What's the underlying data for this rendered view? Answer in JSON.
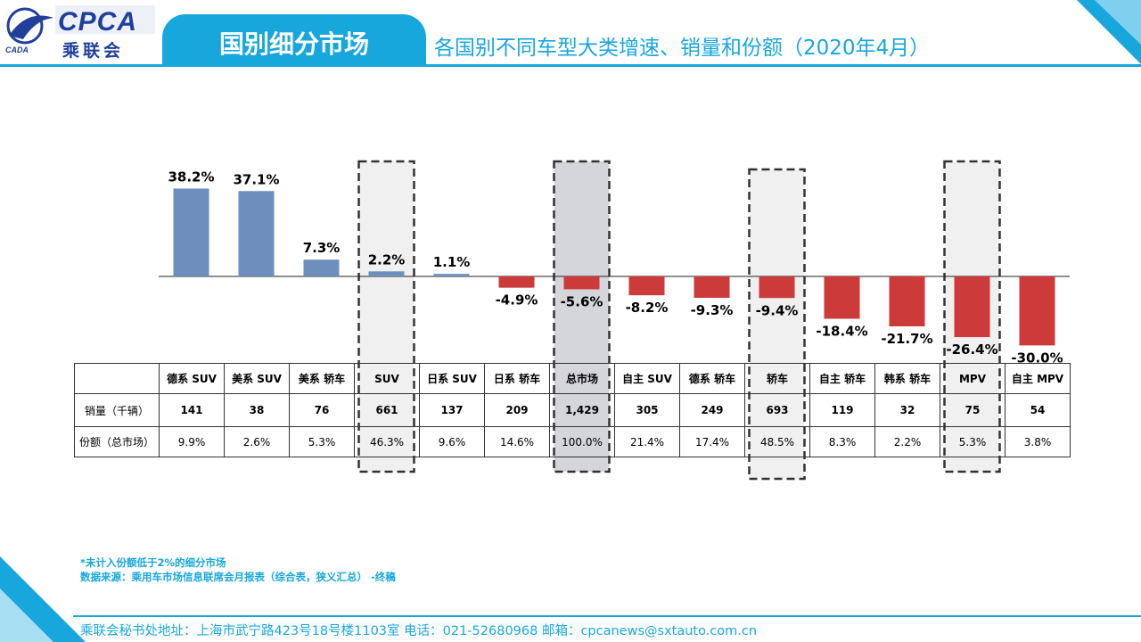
{
  "header": {
    "logo_text": "CPCA",
    "logo_cn": "乘联会",
    "logo_caam": "CADA",
    "section_title": "国别细分市场",
    "subtitle": "各国别不同车型大类增速、销量和份额（2020年4月）"
  },
  "colors": {
    "accent": "#18a7dc",
    "positive_bar": "#6e8fbe",
    "negative_bar": "#cc3a3a",
    "highlight_fill": "#f0f0f0",
    "total_fill": "#d5d5dc"
  },
  "chart_data": {
    "type": "bar",
    "categories": [
      "德系 SUV",
      "美系 SUV",
      "美系 轿车",
      "SUV",
      "日系 SUV",
      "日系 轿车",
      "总市场",
      "自主 SUV",
      "德系 轿车",
      "轿车",
      "自主 轿车",
      "韩系 轿车",
      "MPV",
      "自主 MPV"
    ],
    "values": [
      38.2,
      37.1,
      7.3,
      2.2,
      1.1,
      -4.9,
      -5.6,
      -8.2,
      -9.3,
      -9.4,
      -18.4,
      -21.7,
      -26.4,
      -30.0
    ],
    "value_labels": [
      "38.2%",
      "37.1%",
      "7.3%",
      "2.2%",
      "1.1%",
      "-4.9%",
      "-5.6%",
      "-8.2%",
      "-9.3%",
      "-9.4%",
      "-18.4%",
      "-21.7%",
      "-26.4%",
      "-30.0%"
    ],
    "highlighted": [
      "SUV",
      "总市场",
      "轿车",
      "MPV"
    ],
    "title": "",
    "xlabel": "",
    "ylabel": "",
    "grid": false
  },
  "table": {
    "row_labels": [
      "销量（千辆）",
      "份额（总市场）"
    ],
    "sales": [
      "141",
      "38",
      "76",
      "661",
      "137",
      "209",
      "1,429",
      "305",
      "249",
      "693",
      "119",
      "32",
      "75",
      "54"
    ],
    "share": [
      "9.9%",
      "2.6%",
      "5.3%",
      "46.3%",
      "9.6%",
      "14.6%",
      "100.0%",
      "21.4%",
      "17.4%",
      "48.5%",
      "8.3%",
      "2.2%",
      "5.3%",
      "3.8%"
    ]
  },
  "notes": {
    "line1": "*未计入份额低于2%的细分市场",
    "line2": "数据来源：乘用车市场信息联席会月报表（综合表，狭义汇总） -终稿"
  },
  "footer": {
    "text": "乘联会秘书处地址：上海市武宁路423号18号楼1103室  电话：021-52680968   邮箱：cpcanews@sxtauto.com.cn"
  }
}
